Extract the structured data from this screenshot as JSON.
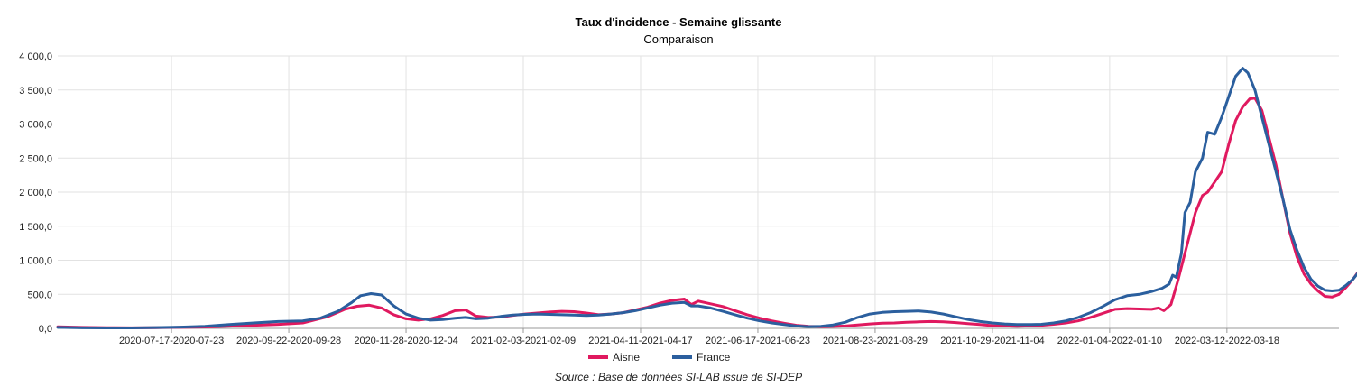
{
  "chart_data": {
    "type": "line",
    "title": "Taux d'incidence - Semaine glissante",
    "subtitle": "Comparaison",
    "source": "Source : Base de données SI-LAB issue de SI-DEP",
    "ylim": [
      0,
      4000
    ],
    "yticks": [
      {
        "value": 0,
        "label": "0,0"
      },
      {
        "value": 500,
        "label": "500,0"
      },
      {
        "value": 1000,
        "label": "1 000,0"
      },
      {
        "value": 1500,
        "label": "1 500,0"
      },
      {
        "value": 2000,
        "label": "2 000,0"
      },
      {
        "value": 2500,
        "label": "2 500,0"
      },
      {
        "value": 3000,
        "label": "3 000,0"
      },
      {
        "value": 3500,
        "label": "3 500,0"
      },
      {
        "value": 4000,
        "label": "4 000,0"
      }
    ],
    "xlim": [
      "2020-05-13",
      "2022-05-15"
    ],
    "xticks": [
      {
        "date": "2020-07-17",
        "label": "2020-07-17-2020-07-23"
      },
      {
        "date": "2020-09-22",
        "label": "2020-09-22-2020-09-28"
      },
      {
        "date": "2020-11-28",
        "label": "2020-11-28-2020-12-04"
      },
      {
        "date": "2021-02-03",
        "label": "2021-02-03-2021-02-09"
      },
      {
        "date": "2021-04-11",
        "label": "2021-04-11-2021-04-17"
      },
      {
        "date": "2021-06-17",
        "label": "2021-06-17-2021-06-23"
      },
      {
        "date": "2021-08-23",
        "label": "2021-08-23-2021-08-29"
      },
      {
        "date": "2021-10-29",
        "label": "2021-10-29-2021-11-04"
      },
      {
        "date": "2022-01-04",
        "label": "2022-01-04-2022-01-10"
      },
      {
        "date": "2022-03-12",
        "label": "2022-03-12-2022-03-18"
      }
    ],
    "grid": true,
    "legend": "bottom-center",
    "series": [
      {
        "name": "Aisne",
        "color": "#e0195f",
        "points": [
          [
            "2020-05-13",
            22
          ],
          [
            "2020-05-27",
            15
          ],
          [
            "2020-06-10",
            10
          ],
          [
            "2020-06-24",
            8
          ],
          [
            "2020-07-08",
            10
          ],
          [
            "2020-07-22",
            14
          ],
          [
            "2020-08-05",
            20
          ],
          [
            "2020-08-19",
            32
          ],
          [
            "2020-09-02",
            45
          ],
          [
            "2020-09-16",
            58
          ],
          [
            "2020-09-30",
            80
          ],
          [
            "2020-10-14",
            170
          ],
          [
            "2020-10-24",
            280
          ],
          [
            "2020-10-31",
            325
          ],
          [
            "2020-11-07",
            340
          ],
          [
            "2020-11-14",
            300
          ],
          [
            "2020-11-21",
            200
          ],
          [
            "2020-11-28",
            140
          ],
          [
            "2020-12-05",
            120
          ],
          [
            "2020-12-12",
            140
          ],
          [
            "2020-12-19",
            190
          ],
          [
            "2020-12-26",
            260
          ],
          [
            "2021-01-01",
            270
          ],
          [
            "2021-01-07",
            180
          ],
          [
            "2021-01-14",
            160
          ],
          [
            "2021-01-21",
            165
          ],
          [
            "2021-01-28",
            190
          ],
          [
            "2021-02-04",
            210
          ],
          [
            "2021-02-11",
            225
          ],
          [
            "2021-02-18",
            240
          ],
          [
            "2021-02-25",
            250
          ],
          [
            "2021-03-04",
            245
          ],
          [
            "2021-03-11",
            225
          ],
          [
            "2021-03-18",
            200
          ],
          [
            "2021-03-25",
            210
          ],
          [
            "2021-04-01",
            230
          ],
          [
            "2021-04-08",
            270
          ],
          [
            "2021-04-15",
            310
          ],
          [
            "2021-04-22",
            370
          ],
          [
            "2021-04-29",
            410
          ],
          [
            "2021-05-06",
            430
          ],
          [
            "2021-05-10",
            350
          ],
          [
            "2021-05-14",
            400
          ],
          [
            "2021-05-21",
            360
          ],
          [
            "2021-05-28",
            320
          ],
          [
            "2021-06-04",
            260
          ],
          [
            "2021-06-11",
            200
          ],
          [
            "2021-06-18",
            150
          ],
          [
            "2021-06-25",
            110
          ],
          [
            "2021-07-02",
            75
          ],
          [
            "2021-07-09",
            45
          ],
          [
            "2021-07-16",
            30
          ],
          [
            "2021-07-23",
            25
          ],
          [
            "2021-07-30",
            28
          ],
          [
            "2021-08-06",
            35
          ],
          [
            "2021-08-13",
            50
          ],
          [
            "2021-08-20",
            65
          ],
          [
            "2021-08-27",
            75
          ],
          [
            "2021-09-03",
            80
          ],
          [
            "2021-09-10",
            90
          ],
          [
            "2021-09-17",
            95
          ],
          [
            "2021-09-24",
            100
          ],
          [
            "2021-10-01",
            95
          ],
          [
            "2021-10-08",
            85
          ],
          [
            "2021-10-15",
            70
          ],
          [
            "2021-10-22",
            55
          ],
          [
            "2021-10-29",
            40
          ],
          [
            "2021-11-05",
            35
          ],
          [
            "2021-11-12",
            30
          ],
          [
            "2021-11-19",
            35
          ],
          [
            "2021-11-26",
            45
          ],
          [
            "2021-12-03",
            60
          ],
          [
            "2021-12-10",
            80
          ],
          [
            "2021-12-17",
            110
          ],
          [
            "2021-12-24",
            160
          ],
          [
            "2021-12-31",
            220
          ],
          [
            "2022-01-07",
            280
          ],
          [
            "2022-01-14",
            290
          ],
          [
            "2022-01-21",
            285
          ],
          [
            "2022-01-28",
            280
          ],
          [
            "2022-02-01",
            300
          ],
          [
            "2022-02-04",
            260
          ],
          [
            "2022-02-08",
            350
          ],
          [
            "2022-02-12",
            700
          ],
          [
            "2022-02-15",
            1000
          ],
          [
            "2022-02-19",
            1400
          ],
          [
            "2022-02-22",
            1700
          ],
          [
            "2022-02-26",
            1950
          ],
          [
            "2022-03-01",
            2000
          ],
          [
            "2022-03-05",
            2150
          ],
          [
            "2022-03-09",
            2300
          ],
          [
            "2022-03-13",
            2700
          ],
          [
            "2022-03-17",
            3050
          ],
          [
            "2022-03-21",
            3250
          ],
          [
            "2022-03-25",
            3370
          ],
          [
            "2022-03-28",
            3380
          ],
          [
            "2022-04-01",
            3200
          ],
          [
            "2022-04-05",
            2800
          ],
          [
            "2022-04-09",
            2400
          ],
          [
            "2022-04-13",
            1900
          ],
          [
            "2022-04-17",
            1400
          ],
          [
            "2022-04-21",
            1050
          ],
          [
            "2022-04-25",
            800
          ],
          [
            "2022-04-29",
            650
          ],
          [
            "2022-05-03",
            550
          ],
          [
            "2022-05-07",
            470
          ],
          [
            "2022-05-11",
            460
          ],
          [
            "2022-05-15",
            500
          ],
          [
            "2022-05-19",
            600
          ],
          [
            "2022-05-23",
            720
          ],
          [
            "2022-05-28",
            900
          ]
        ]
      },
      {
        "name": "France",
        "color": "#2b5f9e",
        "points": [
          [
            "2020-05-13",
            15
          ],
          [
            "2020-05-27",
            8
          ],
          [
            "2020-06-10",
            6
          ],
          [
            "2020-06-24",
            7
          ],
          [
            "2020-07-08",
            12
          ],
          [
            "2020-07-22",
            18
          ],
          [
            "2020-08-05",
            30
          ],
          [
            "2020-08-19",
            55
          ],
          [
            "2020-09-02",
            80
          ],
          [
            "2020-09-16",
            100
          ],
          [
            "2020-09-30",
            110
          ],
          [
            "2020-10-10",
            150
          ],
          [
            "2020-10-20",
            250
          ],
          [
            "2020-10-28",
            380
          ],
          [
            "2020-11-02",
            480
          ],
          [
            "2020-11-08",
            510
          ],
          [
            "2020-11-14",
            490
          ],
          [
            "2020-11-21",
            330
          ],
          [
            "2020-11-28",
            210
          ],
          [
            "2020-12-05",
            150
          ],
          [
            "2020-12-12",
            120
          ],
          [
            "2020-12-19",
            130
          ],
          [
            "2020-12-26",
            150
          ],
          [
            "2021-01-01",
            160
          ],
          [
            "2021-01-07",
            140
          ],
          [
            "2021-01-14",
            150
          ],
          [
            "2021-01-21",
            175
          ],
          [
            "2021-01-28",
            195
          ],
          [
            "2021-02-04",
            205
          ],
          [
            "2021-02-11",
            210
          ],
          [
            "2021-02-18",
            205
          ],
          [
            "2021-02-25",
            200
          ],
          [
            "2021-03-04",
            195
          ],
          [
            "2021-03-11",
            190
          ],
          [
            "2021-03-18",
            195
          ],
          [
            "2021-03-25",
            210
          ],
          [
            "2021-04-01",
            230
          ],
          [
            "2021-04-08",
            260
          ],
          [
            "2021-04-15",
            300
          ],
          [
            "2021-04-22",
            340
          ],
          [
            "2021-04-29",
            370
          ],
          [
            "2021-05-06",
            380
          ],
          [
            "2021-05-10",
            330
          ],
          [
            "2021-05-14",
            330
          ],
          [
            "2021-05-21",
            300
          ],
          [
            "2021-05-28",
            250
          ],
          [
            "2021-06-04",
            200
          ],
          [
            "2021-06-11",
            150
          ],
          [
            "2021-06-18",
            110
          ],
          [
            "2021-06-25",
            80
          ],
          [
            "2021-07-02",
            55
          ],
          [
            "2021-07-09",
            35
          ],
          [
            "2021-07-16",
            25
          ],
          [
            "2021-07-23",
            30
          ],
          [
            "2021-07-30",
            50
          ],
          [
            "2021-08-06",
            90
          ],
          [
            "2021-08-13",
            160
          ],
          [
            "2021-08-20",
            210
          ],
          [
            "2021-08-27",
            235
          ],
          [
            "2021-09-03",
            245
          ],
          [
            "2021-09-10",
            250
          ],
          [
            "2021-09-17",
            255
          ],
          [
            "2021-09-24",
            240
          ],
          [
            "2021-10-01",
            210
          ],
          [
            "2021-10-08",
            170
          ],
          [
            "2021-10-15",
            130
          ],
          [
            "2021-10-22",
            100
          ],
          [
            "2021-10-29",
            80
          ],
          [
            "2021-11-05",
            65
          ],
          [
            "2021-11-12",
            55
          ],
          [
            "2021-11-19",
            55
          ],
          [
            "2021-11-26",
            60
          ],
          [
            "2021-12-03",
            80
          ],
          [
            "2021-12-10",
            110
          ],
          [
            "2021-12-17",
            160
          ],
          [
            "2021-12-24",
            230
          ],
          [
            "2021-12-31",
            320
          ],
          [
            "2022-01-07",
            420
          ],
          [
            "2022-01-14",
            480
          ],
          [
            "2022-01-21",
            500
          ],
          [
            "2022-01-28",
            540
          ],
          [
            "2022-02-03",
            590
          ],
          [
            "2022-02-07",
            650
          ],
          [
            "2022-02-09",
            780
          ],
          [
            "2022-02-11",
            750
          ],
          [
            "2022-02-14",
            1100
          ],
          [
            "2022-02-16",
            1700
          ],
          [
            "2022-02-19",
            1850
          ],
          [
            "2022-02-22",
            2300
          ],
          [
            "2022-02-26",
            2500
          ],
          [
            "2022-03-01",
            2880
          ],
          [
            "2022-03-05",
            2850
          ],
          [
            "2022-03-09",
            3100
          ],
          [
            "2022-03-13",
            3400
          ],
          [
            "2022-03-17",
            3700
          ],
          [
            "2022-03-21",
            3820
          ],
          [
            "2022-03-24",
            3750
          ],
          [
            "2022-03-28",
            3500
          ],
          [
            "2022-04-01",
            3100
          ],
          [
            "2022-04-05",
            2700
          ],
          [
            "2022-04-09",
            2300
          ],
          [
            "2022-04-13",
            1900
          ],
          [
            "2022-04-17",
            1450
          ],
          [
            "2022-04-21",
            1150
          ],
          [
            "2022-04-25",
            900
          ],
          [
            "2022-04-29",
            720
          ],
          [
            "2022-05-03",
            620
          ],
          [
            "2022-05-07",
            560
          ],
          [
            "2022-05-11",
            550
          ],
          [
            "2022-05-15",
            560
          ],
          [
            "2022-05-19",
            630
          ],
          [
            "2022-05-23",
            720
          ],
          [
            "2022-05-28",
            880
          ]
        ]
      }
    ]
  }
}
